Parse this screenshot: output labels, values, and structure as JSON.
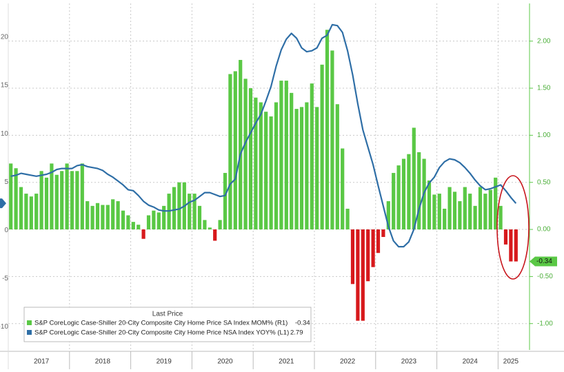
{
  "chart_data": {
    "type": "bar_line",
    "legend_title": "Last Price",
    "categories": [
      null,
      null,
      null,
      null,
      null,
      null,
      "2017",
      null,
      null,
      null,
      null,
      null,
      null,
      null,
      null,
      null,
      null,
      null,
      "2018",
      null,
      null,
      null,
      null,
      null,
      null,
      null,
      null,
      null,
      null,
      null,
      "2019",
      null,
      null,
      null,
      null,
      null,
      null,
      null,
      null,
      null,
      null,
      null,
      "2020",
      null,
      null,
      null,
      null,
      null,
      null,
      null,
      null,
      null,
      null,
      null,
      "2021",
      null,
      null,
      null,
      null,
      null,
      null,
      null,
      null,
      null,
      null,
      null,
      "2022",
      null,
      null,
      null,
      null,
      null,
      null,
      null,
      null,
      null,
      null,
      null,
      "2023",
      null,
      null,
      null,
      null,
      null,
      null,
      null,
      null,
      null,
      null,
      null,
      "2024",
      null,
      null,
      null,
      null,
      null,
      null,
      null,
      "2025",
      null
    ],
    "series": [
      {
        "name": "S&P CoreLogic Case-Shiller 20-City Composite City Home Price SA Index MOM%  (R1)",
        "type": "bar",
        "axis": "y2",
        "color": "#5ac845",
        "negative_color": "#d7191c",
        "values": [
          0.7,
          0.65,
          0.45,
          0.38,
          0.35,
          0.38,
          0.62,
          0.55,
          0.7,
          0.58,
          0.62,
          0.7,
          0.62,
          0.62,
          0.7,
          0.3,
          0.25,
          0.28,
          0.26,
          0.26,
          0.32,
          0.3,
          0.2,
          0.15,
          0.08,
          0.05,
          -0.1,
          0.15,
          0.2,
          0.18,
          0.25,
          0.38,
          0.45,
          0.5,
          0.5,
          0.38,
          0.38,
          0.25,
          0.1,
          0.02,
          -0.12,
          0.1,
          0.6,
          1.65,
          1.68,
          1.8,
          1.6,
          1.5,
          1.4,
          1.35,
          1.25,
          1.2,
          1.35,
          1.58,
          1.58,
          1.45,
          1.28,
          1.3,
          1.35,
          1.55,
          1.3,
          1.75,
          2.12,
          1.9,
          1.33,
          0.86,
          0.22,
          -0.58,
          -0.97,
          -0.97,
          -0.55,
          -0.4,
          -0.25,
          -0.08,
          0.3,
          0.6,
          0.68,
          0.75,
          0.8,
          1.08,
          0.82,
          0.75,
          0.52,
          0.37,
          0.38,
          0.22,
          0.45,
          0.4,
          0.3,
          0.45,
          0.38,
          0.25,
          0.45,
          0.38,
          0.42,
          0.55,
          0.25,
          -0.16,
          -0.34,
          -0.34
        ]
      },
      {
        "name": "S&P CoreLogic Case-Shiller 20-City Composite City Home Price NSA Index YOY%  (L1)",
        "type": "line",
        "axis": "y",
        "color": "#2e6ea6",
        "values": [
          5.6,
          5.7,
          5.9,
          5.8,
          5.7,
          5.6,
          5.7,
          5.8,
          6.0,
          6.3,
          6.4,
          6.4,
          6.4,
          6.7,
          6.8,
          6.6,
          6.5,
          6.4,
          6.2,
          5.8,
          5.5,
          5.1,
          4.7,
          4.2,
          4.1,
          3.6,
          3.0,
          2.6,
          2.4,
          2.1,
          2.0,
          2.0,
          2.1,
          2.2,
          2.5,
          2.9,
          3.1,
          3.5,
          3.9,
          3.9,
          3.7,
          3.5,
          3.6,
          4.8,
          5.3,
          7.9,
          9.1,
          10.1,
          11.1,
          12.0,
          13.4,
          14.9,
          17.0,
          18.7,
          19.8,
          20.4,
          19.9,
          18.9,
          18.5,
          18.6,
          18.9,
          19.9,
          20.2,
          21.3,
          21.2,
          20.5,
          18.6,
          16.1,
          13.1,
          10.4,
          8.6,
          6.8,
          4.6,
          2.5,
          0.4,
          -1.1,
          -1.7,
          -1.7,
          -1.2,
          0.1,
          2.2,
          3.9,
          4.9,
          5.5,
          6.5,
          7.1,
          7.4,
          7.3,
          7.0,
          6.5,
          5.9,
          5.2,
          4.6,
          4.2,
          4.3,
          4.5,
          4.7,
          4.1,
          3.4,
          2.79
        ]
      }
    ],
    "ylim": [
      -12.4,
      23.5
    ],
    "yticks": [
      -10,
      -5,
      0,
      5,
      10,
      15,
      20
    ],
    "y2lim": [
      -1.28,
      2.4
    ],
    "y2ticks": [
      {
        "value": -1,
        "label": "-1.00"
      },
      {
        "value": -0.5,
        "label": "-0.50"
      },
      {
        "value": 0,
        "label": "0.00"
      },
      {
        "value": 0.5,
        "label": "0.50"
      },
      {
        "value": 1,
        "label": "1.00"
      },
      {
        "value": 1.5,
        "label": "1.50"
      },
      {
        "value": 2,
        "label": "2.00"
      }
    ],
    "grid": true
  }
}
